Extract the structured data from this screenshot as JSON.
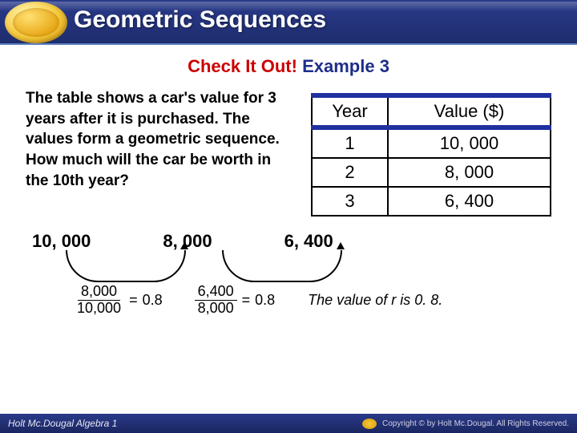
{
  "header": {
    "title": "Geometric Sequences",
    "badge_colors": {
      "outer": "#f5c83a",
      "inner": "#e8a818"
    },
    "bar_color": "#1e2d6e"
  },
  "subtitle": {
    "red_text": "Check It Out!",
    "blue_text": "Example 3"
  },
  "problem_text": "The table shows a car's value for 3 years after it is purchased. The values form a geometric sequence. How much will the car be worth in the 10th year?",
  "table": {
    "header_border_color": "#2030a0",
    "columns": [
      "Year",
      "Value ($)"
    ],
    "rows": [
      [
        "1",
        "10, 000"
      ],
      [
        "2",
        "8, 000"
      ],
      [
        "3",
        "6, 400"
      ]
    ]
  },
  "sequence": {
    "terms": [
      "10, 000",
      "8, 000",
      "6, 400"
    ]
  },
  "fractions": [
    {
      "numerator": "8,000",
      "denominator": "10,000",
      "result": "0.8"
    },
    {
      "numerator": "6,400",
      "denominator": "8,000",
      "result": "0.8"
    }
  ],
  "conclusion": "The value of r is 0. 8.",
  "footer": {
    "left": "Holt Mc.Dougal Algebra 1",
    "right": "Copyright © by Holt Mc.Dougal. All Rights Reserved."
  }
}
